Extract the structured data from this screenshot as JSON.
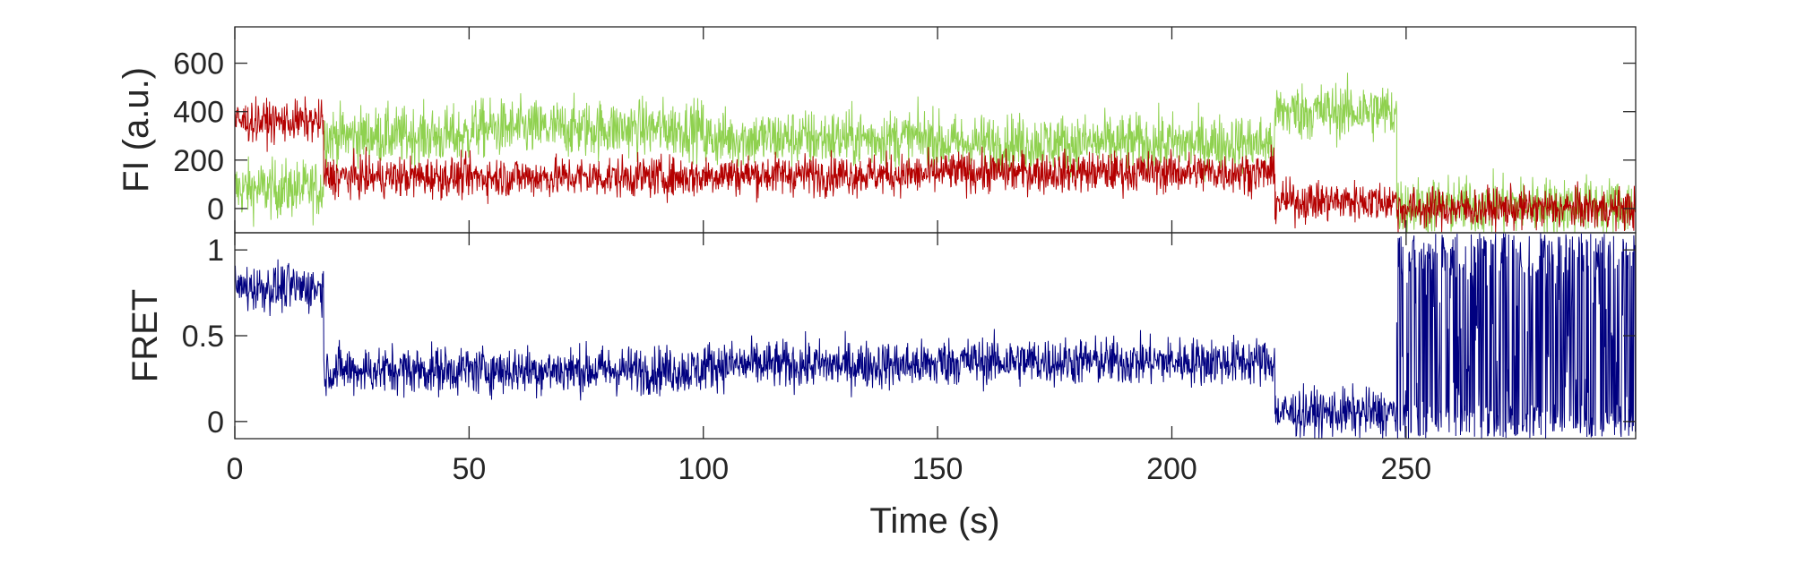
{
  "chart_data": [
    {
      "type": "line",
      "panel": "intensity",
      "ylabel": "FI (a.u.)",
      "xlim": [
        0,
        299
      ],
      "ylim": [
        -100,
        750
      ],
      "yticks": [
        0,
        200,
        400,
        600
      ],
      "yticklabels": [
        "0",
        "200",
        "400",
        "600"
      ],
      "series": [
        {
          "color": "#8fd14f",
          "noise": 85,
          "segments": [
            {
              "x0": 0,
              "x1": 19,
              "value": 80
            },
            {
              "x0": 19,
              "x1": 50,
              "value": 300
            },
            {
              "x0": 50,
              "x1": 100,
              "value": 330
            },
            {
              "x0": 100,
              "x1": 150,
              "value": 290
            },
            {
              "x0": 150,
              "x1": 222,
              "value": 270
            },
            {
              "x0": 222,
              "x1": 248,
              "value": 400
            },
            {
              "x0": 248,
              "x1": 299,
              "value": 10
            }
          ]
        },
        {
          "color": "#b40000",
          "noise": 60,
          "segments": [
            {
              "x0": 0,
              "x1": 19,
              "value": 360
            },
            {
              "x0": 19,
              "x1": 100,
              "value": 130
            },
            {
              "x0": 100,
              "x1": 150,
              "value": 140
            },
            {
              "x0": 150,
              "x1": 222,
              "value": 150
            },
            {
              "x0": 222,
              "x1": 248,
              "value": 30
            },
            {
              "x0": 248,
              "x1": 299,
              "value": 0
            }
          ]
        }
      ]
    },
    {
      "type": "line",
      "panel": "fret",
      "ylabel": "FRET",
      "xlabel": "Time (s)",
      "xlim": [
        0,
        299
      ],
      "ylim": [
        -0.1,
        1.1
      ],
      "xticks": [
        0,
        50,
        100,
        150,
        200,
        250
      ],
      "xticklabels": [
        "0",
        "50",
        "100",
        "150",
        "200",
        "250"
      ],
      "yticks": [
        0,
        0.5,
        1
      ],
      "yticklabels": [
        "0",
        "0.5",
        "1"
      ],
      "series": [
        {
          "color": "#000080",
          "noise": 0.1,
          "segments": [
            {
              "x0": 0,
              "x1": 19,
              "value": 0.78
            },
            {
              "x0": 19,
              "x1": 100,
              "value": 0.3
            },
            {
              "x0": 100,
              "x1": 150,
              "value": 0.33
            },
            {
              "x0": 150,
              "x1": 222,
              "value": 0.35
            },
            {
              "x0": 222,
              "x1": 248,
              "value": 0.05
            },
            {
              "x0": 248,
              "x1": 299,
              "value": 0.5,
              "erratic": true
            }
          ]
        }
      ]
    }
  ]
}
